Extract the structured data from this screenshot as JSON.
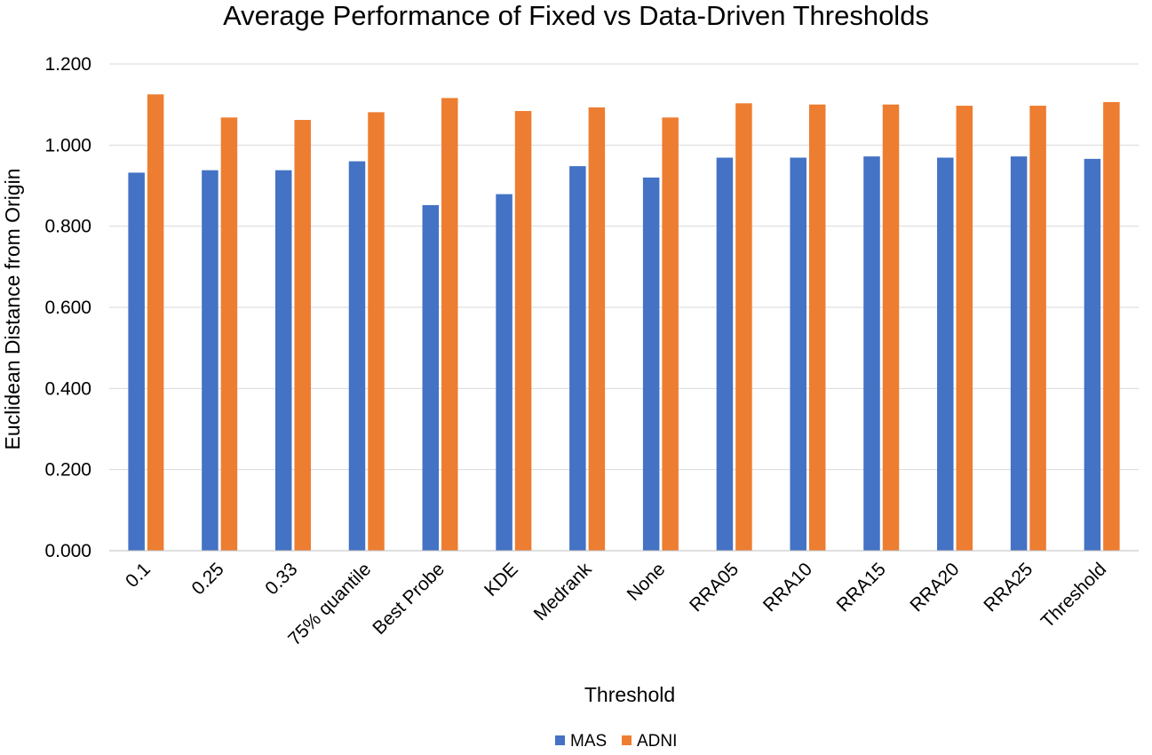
{
  "chart_data": {
    "type": "bar",
    "title": "Average Performance of Fixed vs Data-Driven Thresholds",
    "xlabel": "Threshold",
    "ylabel": "Euclidean Distance from Origin",
    "ylim": [
      0,
      1.2
    ],
    "yticks": [
      "0.000",
      "0.200",
      "0.400",
      "0.600",
      "0.800",
      "1.000",
      "1.200"
    ],
    "grid": true,
    "legend_position": "bottom",
    "categories": [
      "0.1",
      "0.25",
      "0.33",
      "75% quantile",
      "Best Probe",
      "KDE",
      "Medrank",
      "None",
      "RRA05",
      "RRA10",
      "RRA15",
      "RRA20",
      "RRA25",
      "Threshold"
    ],
    "series": [
      {
        "name": "MAS",
        "color": "#4472C4",
        "values": [
          0.932,
          0.938,
          0.938,
          0.96,
          0.852,
          0.879,
          0.948,
          0.92,
          0.969,
          0.969,
          0.972,
          0.969,
          0.972,
          0.966
        ]
      },
      {
        "name": "ADNI",
        "color": "#ED7D31",
        "values": [
          1.125,
          1.068,
          1.062,
          1.081,
          1.116,
          1.084,
          1.093,
          1.068,
          1.103,
          1.1,
          1.1,
          1.097,
          1.097,
          1.106
        ]
      }
    ]
  }
}
